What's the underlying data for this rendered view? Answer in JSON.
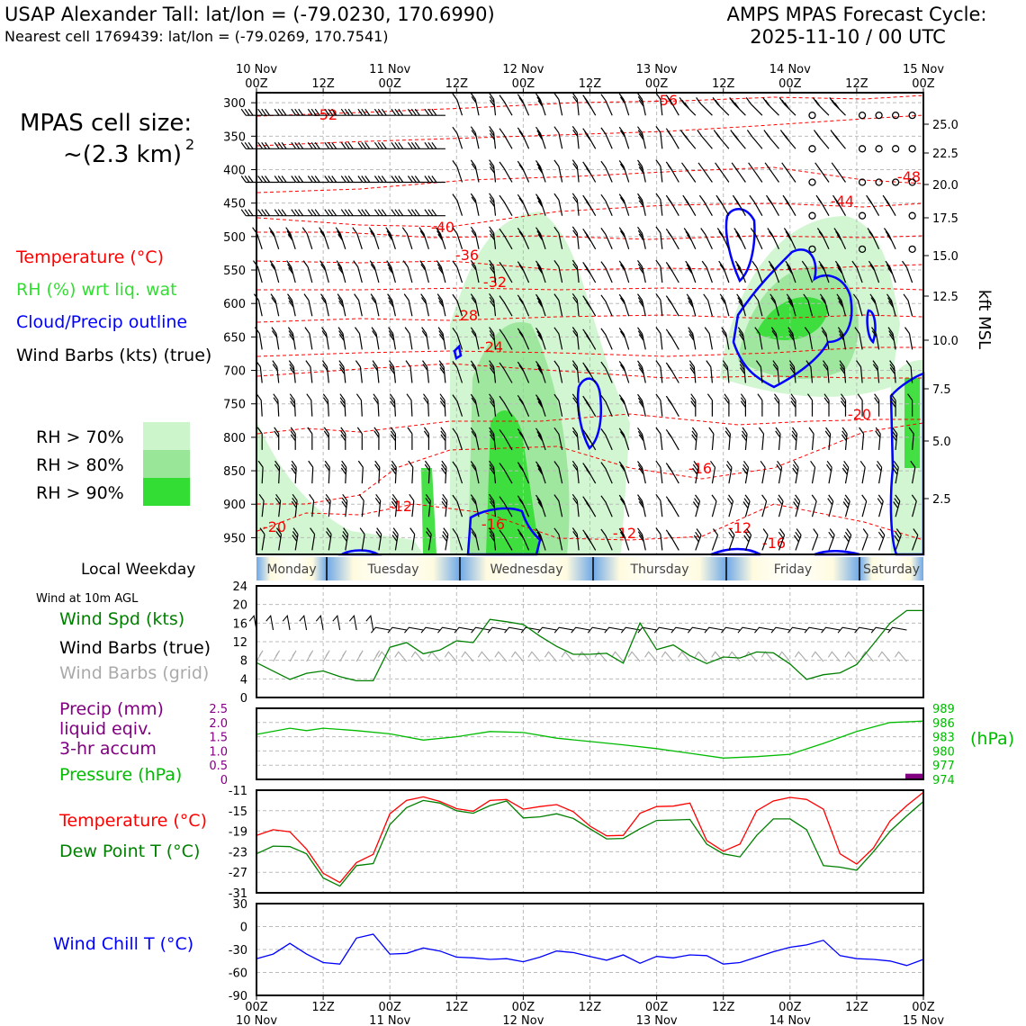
{
  "header": {
    "station": "USAP Alexander Tall: lat/lon = (-79.0230, 170.6990)",
    "cell": "Nearest cell 1769439: lat/lon = (-79.0269, 170.7541)",
    "cycle_line1": "AMPS MPAS Forecast Cycle:",
    "cycle_line2": "2025-11-10 / 00 UTC"
  },
  "left_labels": {
    "cell_size": "MPAS cell size:",
    "cell_size_value": "~(2.3 km)",
    "cell_size_exp": "2",
    "temperature": "Temperature (°C)",
    "rh": "RH (%) wrt liq. wat",
    "cloud": "Cloud/Precip outline",
    "wind": "Wind Barbs (kts) (true)",
    "rh70": "RH > 70%",
    "rh80": "RH > 80%",
    "rh90": "RH > 90%",
    "local_weekday": "Local Weekday",
    "wind10m": "Wind at 10m AGL",
    "wind_spd": "Wind Spd (kts)",
    "wind_barbs_true": "Wind Barbs (true)",
    "wind_barbs_grid": "Wind Barbs (grid)",
    "precip1": "Precip (mm)",
    "precip2": "liquid eqiv.",
    "precip3": "3-hr accum",
    "pressure": "Pressure (hPa)",
    "temp2": "Temperature (°C)",
    "dew": "Dew Point T (°C)",
    "chill": "Wind Chill T (°C)",
    "kft": "kft MSL",
    "hpa": "(hPa)"
  },
  "colors": {
    "temperature": "#ff0000",
    "rh": "#33dd33",
    "cloud": "#0000ff",
    "dewpoint": "#008000",
    "pressure": "#00bb00",
    "precip": "#800080",
    "rh70": "#ccf5cc",
    "rh80": "#99e699",
    "rh90": "#33dd33"
  },
  "time_axis": {
    "top_ticks": [
      "00Z",
      "12Z",
      "00Z",
      "12Z",
      "00Z",
      "12Z",
      "00Z",
      "12Z",
      "00Z",
      "12Z",
      "00Z"
    ],
    "top_dates": [
      "10 Nov",
      "11 Nov",
      "12 Nov",
      "13 Nov",
      "14 Nov",
      "15 Nov"
    ],
    "bottom_ticks": [
      "00Z",
      "12Z",
      "00Z",
      "12Z",
      "00Z",
      "12Z",
      "00Z",
      "12Z",
      "00Z",
      "12Z",
      "00Z"
    ],
    "bottom_dates": [
      "10 Nov",
      "11 Nov",
      "12 Nov",
      "13 Nov",
      "14 Nov",
      "15 Nov"
    ]
  },
  "weekdays": [
    "Monday",
    "Tuesday",
    "Wednesday",
    "Thursday",
    "Friday",
    "Saturday"
  ],
  "chart_data": [
    {
      "type": "heatmap",
      "name": "time-height cross section",
      "y_left_ticks": [
        "300",
        "350",
        "400",
        "450",
        "500",
        "550",
        "600",
        "650",
        "700",
        "750",
        "800",
        "850",
        "900",
        "950"
      ],
      "y_right_ticks": [
        "25.0",
        "22.5",
        "20.0",
        "17.5",
        "15.0",
        "12.5",
        "10.0",
        "7.5",
        "5.0",
        "2.5"
      ],
      "ylim_hpa": [
        975,
        285
      ],
      "temperature_contour_labels": [
        "-56",
        "-52",
        "-48",
        "-44",
        "-40",
        "-36",
        "-32",
        "-28",
        "-24",
        "-20",
        "-16",
        "-12",
        "-20",
        "-16",
        "-12",
        "-12",
        "-16"
      ]
    },
    {
      "type": "line",
      "name": "10m wind speed",
      "ylim": [
        0,
        24
      ],
      "y_ticks": [
        "0",
        "4",
        "8",
        "12",
        "16",
        "20",
        "24"
      ],
      "x_hours": [
        0,
        6,
        9,
        12,
        15,
        18,
        21,
        24,
        27,
        30,
        33,
        36,
        39,
        42,
        45,
        48,
        51,
        54,
        57,
        60,
        63,
        66,
        69,
        72,
        75,
        78,
        81,
        84,
        87,
        90,
        93,
        96,
        99,
        102,
        105,
        108,
        111,
        114,
        117,
        120
      ],
      "values": [
        7.5,
        3.9,
        5.2,
        5.7,
        4.5,
        3.6,
        3.6,
        10.8,
        11.8,
        9.4,
        10.2,
        12.2,
        11.8,
        16.8,
        16.3,
        15.7,
        13.2,
        11.0,
        9.3,
        9.3,
        9.5,
        7.4,
        16.0,
        10.3,
        11.3,
        9.0,
        7.3,
        8.7,
        8.5,
        9.8,
        9.6,
        7.2,
        3.9,
        4.9,
        5.3,
        7.1,
        11.5,
        16.0,
        18.7,
        18.7
      ],
      "series": [
        {
          "name": "Wind Spd (kts)"
        }
      ]
    },
    {
      "type": "line",
      "name": "precip and pressure",
      "y_left_ticks": [
        "0",
        "0.5",
        "1.0",
        "1.5",
        "2.0",
        "2.5"
      ],
      "y_right_ticks": [
        "974",
        "977",
        "980",
        "983",
        "986",
        "989"
      ],
      "ylim_pressure": [
        974,
        989
      ],
      "ylim_precip": [
        0,
        2.5
      ],
      "x_hours": [
        0,
        6,
        9,
        12,
        18,
        24,
        30,
        36,
        42,
        48,
        54,
        60,
        66,
        72,
        78,
        84,
        90,
        96,
        102,
        108,
        114,
        120
      ],
      "pressure": [
        983.5,
        984.8,
        984.3,
        984.8,
        984.3,
        983.6,
        982.3,
        983.0,
        984.1,
        983.9,
        982.7,
        982.0,
        981.3,
        980.5,
        979.5,
        978.5,
        978.8,
        979.3,
        981.6,
        984.1,
        986.0,
        986.3
      ],
      "precip": [
        0,
        0,
        0,
        0,
        0,
        0,
        0,
        0,
        0,
        0,
        0,
        0,
        0,
        0,
        0,
        0,
        0,
        0,
        0,
        0,
        0,
        0.2
      ],
      "series": [
        {
          "name": "Pressure (hPa)"
        },
        {
          "name": "Precip (mm)"
        }
      ]
    },
    {
      "type": "line",
      "name": "temperature and dew point",
      "ylim": [
        -31,
        -11
      ],
      "y_ticks": [
        "-11",
        "-15",
        "-19",
        "-23",
        "-27",
        "-31"
      ],
      "x_hours": [
        0,
        3,
        6,
        9,
        12,
        15,
        18,
        21,
        24,
        27,
        30,
        33,
        36,
        39,
        42,
        45,
        48,
        51,
        54,
        57,
        60,
        63,
        66,
        69,
        72,
        75,
        78,
        81,
        84,
        87,
        90,
        93,
        96,
        99,
        102,
        105,
        108,
        111,
        114,
        117,
        120
      ],
      "temperature": [
        -19.8,
        -18.7,
        -19.1,
        -22.5,
        -27.2,
        -29.0,
        -25.1,
        -23.5,
        -15.6,
        -13.0,
        -12.3,
        -13.2,
        -14.6,
        -15.1,
        -13.0,
        -12.8,
        -14.7,
        -14.2,
        -13.8,
        -15.2,
        -18.0,
        -19.9,
        -19.8,
        -15.5,
        -14.2,
        -14.1,
        -13.5,
        -20.8,
        -22.9,
        -21.5,
        -15.0,
        -13.1,
        -12.4,
        -12.8,
        -14.7,
        -23.4,
        -25.4,
        -22.3,
        -17.0,
        -14.0,
        -11.4
      ],
      "dewpoint": [
        -23.4,
        -21.9,
        -22.0,
        -23.4,
        -28.1,
        -29.7,
        -25.7,
        -25.3,
        -17.7,
        -14.4,
        -13.0,
        -13.5,
        -15.0,
        -15.5,
        -14.0,
        -13.1,
        -16.4,
        -16.2,
        -15.6,
        -16.5,
        -18.5,
        -20.5,
        -20.4,
        -18.5,
        -16.9,
        -16.8,
        -16.7,
        -21.5,
        -23.4,
        -24.0,
        -19.8,
        -16.6,
        -16.6,
        -18.7,
        -25.7,
        -26.0,
        -26.6,
        -23.0,
        -19.0,
        -16.0,
        -13.2
      ],
      "series": [
        {
          "name": "Temperature (°C)"
        },
        {
          "name": "Dew Point T (°C)"
        }
      ]
    },
    {
      "type": "line",
      "name": "wind chill",
      "ylim": [
        -90,
        30
      ],
      "y_ticks": [
        "30",
        "0",
        "-30",
        "-60",
        "-90"
      ],
      "x_hours": [
        0,
        3,
        6,
        9,
        12,
        15,
        18,
        21,
        24,
        27,
        30,
        33,
        36,
        39,
        42,
        45,
        48,
        51,
        54,
        57,
        60,
        63,
        66,
        69,
        72,
        75,
        78,
        81,
        84,
        87,
        90,
        93,
        96,
        99,
        102,
        105,
        108,
        111,
        114,
        117,
        120
      ],
      "values": [
        -42,
        -36,
        -22,
        -36,
        -47,
        -49,
        -15,
        -10,
        -36,
        -35,
        -28,
        -32,
        -40,
        -41,
        -43,
        -42,
        -46,
        -40,
        -32,
        -34,
        -39,
        -44,
        -37,
        -48,
        -39,
        -41,
        -37,
        -38,
        -49,
        -47,
        -40,
        -33,
        -27,
        -24,
        -18,
        -38,
        -42,
        -43,
        -45,
        -51,
        -43
      ],
      "series": [
        {
          "name": "Wind Chill T (°C)"
        }
      ]
    }
  ]
}
